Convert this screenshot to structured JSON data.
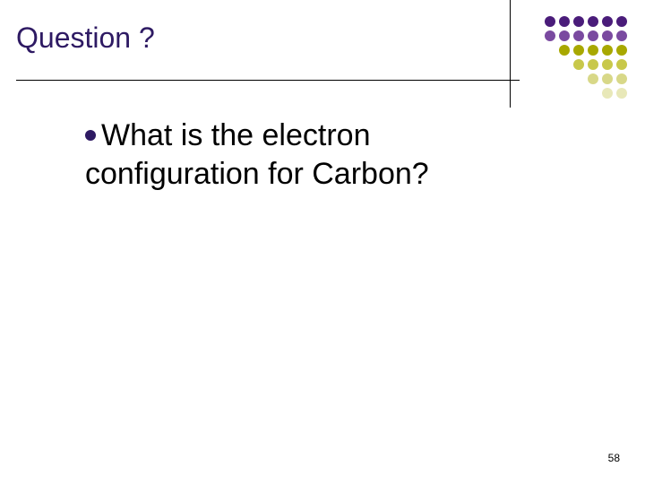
{
  "title": "Question ?",
  "title_color": "#2e1a63",
  "title_fontsize": 32,
  "bullet_color": "#2e1a63",
  "body": {
    "line1": "What is the electron",
    "line2": "configuration for Carbon?"
  },
  "body_fontsize": 34,
  "page_number": "58",
  "dot_grid": {
    "rows": 6,
    "cols": 6,
    "dot_size": 12,
    "gap": 4,
    "colors": [
      "#4a1c7a",
      "#4a1c7a",
      "#4a1c7a",
      "#4a1c7a",
      "#4a1c7a",
      "#4a1c7a",
      "#7a4aa0",
      "#7a4aa0",
      "#7a4aa0",
      "#7a4aa0",
      "#7a4aa0",
      "#7a4aa0",
      "#ffffff",
      "#a8a800",
      "#a8a800",
      "#a8a800",
      "#a8a800",
      "#a8a800",
      "#ffffff",
      "#ffffff",
      "#c8c84a",
      "#c8c84a",
      "#c8c84a",
      "#c8c84a",
      "#ffffff",
      "#ffffff",
      "#ffffff",
      "#d8d888",
      "#d8d888",
      "#d8d888",
      "#ffffff",
      "#ffffff",
      "#ffffff",
      "#ffffff",
      "#e8e8b8",
      "#e8e8b8"
    ]
  },
  "background_color": "#ffffff"
}
